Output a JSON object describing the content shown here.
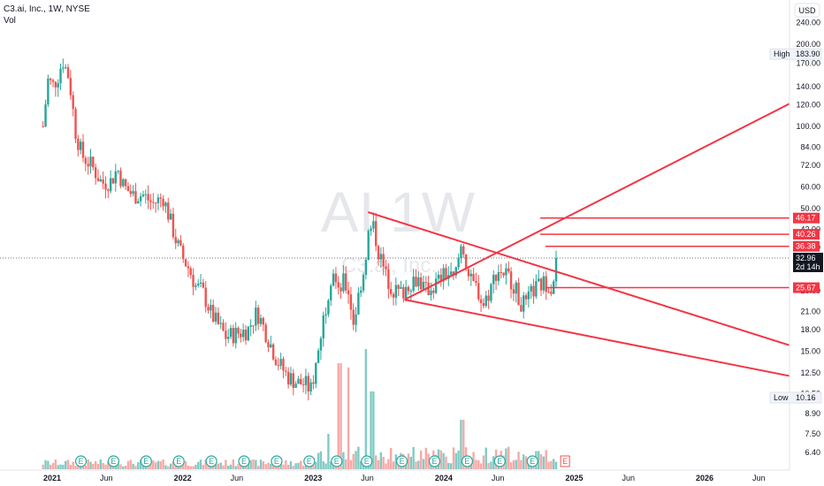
{
  "header": {
    "title": "C3.ai, Inc., 1W, NYSE",
    "sub": "Vol"
  },
  "watermark": {
    "ticker": "AI",
    "interval": "1W",
    "company": "C3.ai, Inc."
  },
  "currency": "USD",
  "colors": {
    "up": "#26a69a",
    "down": "#ef5350",
    "vol_up": "#80cbc4",
    "vol_down": "#f7a9a7",
    "drawing": "#f23645",
    "last": "#131722"
  },
  "chart_data": {
    "type": "candlestick",
    "title": "C3.ai, Inc., 1W, NYSE",
    "y_scale": "log",
    "ylim": [
      5.6,
      290
    ],
    "y_ticks": [
      240,
      200,
      170,
      140,
      120,
      100,
      84,
      72,
      60,
      50,
      42,
      36,
      30,
      25,
      21,
      18,
      15,
      12.5,
      10.5,
      8.9,
      7.5,
      6.4
    ],
    "x_ticks": [
      "2021",
      "Jun",
      "2022",
      "Jun",
      "2023",
      "Jun",
      "2024",
      "Jun",
      "2025",
      "Jun",
      "2026",
      "Jun"
    ],
    "x_tick_times": [
      2021.0,
      2021.415,
      2022.0,
      2022.415,
      2023.0,
      2023.415,
      2024.0,
      2024.415,
      2025.0,
      2025.415,
      2026.0,
      2026.415
    ],
    "xlim": [
      2020.6,
      2026.65
    ],
    "high": {
      "label": "High",
      "value": 183.9
    },
    "low": {
      "label": "Low",
      "value": 10.16
    },
    "last_price": {
      "value": 32.96,
      "countdown": "2d 14h"
    },
    "price_levels": [
      46.17,
      40.26,
      36.38,
      25.67
    ],
    "level_start_times": [
      2024.74,
      2024.74,
      2024.78,
      2024.78
    ],
    "trendlines": [
      {
        "from": [
          2023.42,
          48.5
        ],
        "to": [
          2026.65,
          15.8
        ]
      },
      {
        "from": [
          2023.7,
          23.2
        ],
        "to": [
          2026.65,
          12.2
        ]
      },
      {
        "from": [
          2023.7,
          23.2
        ],
        "to": [
          2026.65,
          121
        ]
      }
    ],
    "earnings_times": [
      2021.22,
      2021.47,
      2021.72,
      2021.97,
      2022.22,
      2022.47,
      2022.72,
      2022.97,
      2023.18,
      2023.41,
      2023.68,
      2023.93,
      2024.18,
      2024.43,
      2024.68,
      2024.93
    ],
    "earnings_label": "E",
    "upcoming_earnings": 2024.93,
    "anchors": [
      [
        2020.93,
        100
      ],
      [
        2020.97,
        150
      ],
      [
        2021.0,
        140
      ],
      [
        2021.04,
        150
      ],
      [
        2021.08,
        175
      ],
      [
        2021.13,
        150
      ],
      [
        2021.18,
        95
      ],
      [
        2021.23,
        78
      ],
      [
        2021.3,
        72
      ],
      [
        2021.38,
        62
      ],
      [
        2021.45,
        63
      ],
      [
        2021.5,
        70
      ],
      [
        2021.55,
        60
      ],
      [
        2021.62,
        56
      ],
      [
        2021.7,
        56
      ],
      [
        2021.77,
        52
      ],
      [
        2021.85,
        55
      ],
      [
        2021.9,
        46
      ],
      [
        2021.95,
        38
      ],
      [
        2022.0,
        33
      ],
      [
        2022.05,
        30
      ],
      [
        2022.1,
        26
      ],
      [
        2022.15,
        25
      ],
      [
        2022.22,
        20.5
      ],
      [
        2022.28,
        18.5
      ],
      [
        2022.33,
        17
      ],
      [
        2022.42,
        17.5
      ],
      [
        2022.5,
        18
      ],
      [
        2022.57,
        21
      ],
      [
        2022.65,
        17
      ],
      [
        2022.72,
        14
      ],
      [
        2022.8,
        12.2
      ],
      [
        2022.88,
        11.5
      ],
      [
        2022.94,
        11.4
      ],
      [
        2022.98,
        10.8
      ],
      [
        2023.03,
        14
      ],
      [
        2023.07,
        19
      ],
      [
        2023.11,
        24
      ],
      [
        2023.15,
        31
      ],
      [
        2023.19,
        24
      ],
      [
        2023.23,
        27
      ],
      [
        2023.27,
        25
      ],
      [
        2023.31,
        19
      ],
      [
        2023.36,
        26
      ],
      [
        2023.39,
        30
      ],
      [
        2023.42,
        40
      ],
      [
        2023.46,
        43
      ],
      [
        2023.5,
        35
      ],
      [
        2023.56,
        28
      ],
      [
        2023.62,
        25
      ],
      [
        2023.68,
        24.5
      ],
      [
        2023.74,
        27
      ],
      [
        2023.8,
        28
      ],
      [
        2023.86,
        25
      ],
      [
        2023.92,
        26
      ],
      [
        2023.98,
        28
      ],
      [
        2024.03,
        29
      ],
      [
        2024.08,
        27
      ],
      [
        2024.14,
        38
      ],
      [
        2024.2,
        27
      ],
      [
        2024.26,
        25.5
      ],
      [
        2024.3,
        22
      ],
      [
        2024.35,
        25
      ],
      [
        2024.41,
        30
      ],
      [
        2024.47,
        29
      ],
      [
        2024.53,
        27
      ],
      [
        2024.58,
        23
      ],
      [
        2024.63,
        22
      ],
      [
        2024.68,
        25
      ],
      [
        2024.73,
        26
      ],
      [
        2024.79,
        27
      ],
      [
        2024.83,
        26
      ],
      [
        2024.87,
        32.96
      ]
    ],
    "volume_spikes": [
      [
        2023.11,
        0.25
      ],
      [
        2023.2,
        0.75
      ],
      [
        2023.27,
        0.72
      ],
      [
        2023.41,
        0.85
      ],
      [
        2023.45,
        0.55
      ],
      [
        2024.14,
        0.35
      ]
    ]
  }
}
